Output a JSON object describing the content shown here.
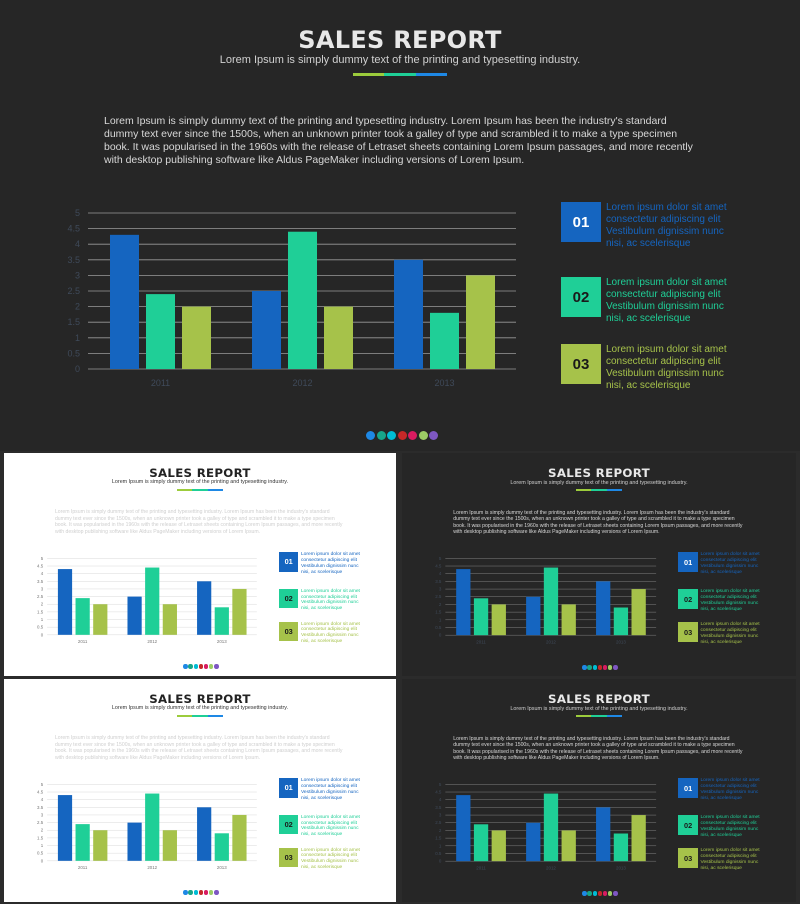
{
  "slides": [
    {
      "theme": "dark",
      "title": "SALES REPORT",
      "subtitle": "Lorem Ipsum is simply dummy text of the printing and typesetting industry.",
      "body": "Lorem Ipsum is simply dummy text of the printing and typesetting industry. Lorem Ipsum has been the industry's standard dummy text ever since the 1500s, when an unknown printer took a galley of type and scrambled it to make a type specimen book. It was popularised in the 1960s with the release of Letraset sheets containing Lorem Ipsum passages, and more recently with desktop publishing software like Aldus PageMaker including versions of Lorem Ipsum.",
      "legend": [
        {
          "num": "01",
          "text": "Lorem ipsum dolor sit amet consectetur adipiscing elit Vestibulum dignissim nunc nisi, ac scelerisque"
        },
        {
          "num": "02",
          "text": "Lorem ipsum dolor sit amet consectetur adipiscing elit Vestibulum dignissim nunc nisi, ac scelerisque"
        },
        {
          "num": "03",
          "text": "Lorem ipsum dolor sit amet consectetur adipiscing elit Vestibulum dignissim nunc nisi, ac scelerisque"
        }
      ]
    },
    {
      "theme": "light",
      "title": "SALES REPORT",
      "subtitle": "Lorem Ipsum is simply dummy text of the printing and typesetting industry.",
      "body": "Lorem Ipsum is simply dummy text of the printing and typesetting industry. Lorem Ipsum has been the industry's standard dummy text ever since the 1500s, when an unknown printer took a galley of type and scrambled it to make a type specimen book. It was popularised in the 1960s with the release of Letraset sheets containing Lorem Ipsum passages, and more recently with desktop publishing software like Aldus PageMaker including versions of Lorem Ipsum.",
      "legend": [
        {
          "num": "01",
          "text": "Lorem ipsum dolor sit amet consectetur adipiscing elit Vestibulum dignissim nunc nisi, ac scelerisque"
        },
        {
          "num": "02",
          "text": "Lorem ipsum dolor sit amet consectetur adipiscing elit Vestibulum dignissim nunc nisi, ac scelerisque"
        },
        {
          "num": "03",
          "text": "Lorem ipsum dolor sit amet consectetur adipiscing elit Vestibulum dignissim nunc nisi, ac scelerisque"
        }
      ]
    },
    {
      "theme": "dark",
      "title": "SALES REPORT",
      "subtitle": "Lorem Ipsum is simply dummy text of the printing and typesetting industry.",
      "body": "Lorem Ipsum is simply dummy text of the printing and typesetting industry. Lorem Ipsum has been the industry's standard dummy text ever since the 1500s, when an unknown printer took a galley of type and scrambled it to make a type specimen book. It was popularised in the 1960s with the release of Letraset sheets containing Lorem Ipsum passages, and more recently with desktop publishing software like Aldus PageMaker including versions of Lorem Ipsum.",
      "legend": [
        {
          "num": "01",
          "text": "Lorem ipsum dolor sit amet consectetur adipiscing elit Vestibulum dignissim nunc nisi, ac scelerisque"
        },
        {
          "num": "02",
          "text": "Lorem ipsum dolor sit amet consectetur adipiscing elit Vestibulum dignissim nunc nisi, ac scelerisque"
        },
        {
          "num": "03",
          "text": "Lorem ipsum dolor sit amet consectetur adipiscing elit Vestibulum dignissim nunc nisi, ac scelerisque"
        }
      ]
    },
    {
      "theme": "light",
      "title": "SALES REPORT",
      "subtitle": "Lorem Ipsum is simply dummy text of the printing and typesetting industry.",
      "body": "Lorem Ipsum is simply dummy text of the printing and typesetting industry. Lorem Ipsum has been the industry's standard dummy text ever since the 1500s, when an unknown printer took a galley of type and scrambled it to make a type specimen book. It was popularised in the 1960s with the release of Letraset sheets containing Lorem Ipsum passages, and more recently with desktop publishing software like Aldus PageMaker including versions of Lorem Ipsum.",
      "legend": [
        {
          "num": "01",
          "text": "Lorem ipsum dolor sit amet consectetur adipiscing elit Vestibulum dignissim nunc nisi, ac scelerisque"
        },
        {
          "num": "02",
          "text": "Lorem ipsum dolor sit amet consectetur adipiscing elit Vestibulum dignissim nunc nisi, ac scelerisque"
        },
        {
          "num": "03",
          "text": "Lorem ipsum dolor sit amet consectetur adipiscing elit Vestibulum dignissim nunc nisi, ac scelerisque"
        }
      ]
    },
    {
      "theme": "dark",
      "title": "SALES REPORT",
      "subtitle": "Lorem Ipsum is simply dummy text of the printing and typesetting industry.",
      "body": "Lorem Ipsum is simply dummy text of the printing and typesetting industry. Lorem Ipsum has been the industry's standard dummy text ever since the 1500s, when an unknown printer took a galley of type and scrambled it to make a type specimen book. It was popularised in the 1960s with the release of Letraset sheets containing Lorem Ipsum passages, and more recently with desktop publishing software like Aldus PageMaker including versions of Lorem Ipsum.",
      "legend": [
        {
          "num": "01",
          "text": "Lorem ipsum dolor sit amet consectetur adipiscing elit Vestibulum dignissim nunc nisi, ac scelerisque"
        },
        {
          "num": "02",
          "text": "Lorem ipsum dolor sit amet consectetur adipiscing elit Vestibulum dignissim nunc nisi, ac scelerisque"
        },
        {
          "num": "03",
          "text": "Lorem ipsum dolor sit amet consectetur adipiscing elit Vestibulum dignissim nunc nisi, ac scelerisque"
        }
      ]
    }
  ],
  "colors": {
    "series": [
      "#1565c0",
      "#1fcf97",
      "#a6c24a"
    ],
    "dots": [
      "#1e88e5",
      "#17a589",
      "#00bcd4",
      "#c62828",
      "#d81b60",
      "#9ccc65",
      "#7e57c2"
    ],
    "underline": [
      "#9ccc3c",
      "#1fcf97",
      "#1e88e5"
    ]
  },
  "chart_data": {
    "type": "bar",
    "categories": [
      "2011",
      "2012",
      "2013"
    ],
    "series": [
      {
        "values": [
          4.3,
          2.5,
          3.5
        ]
      },
      {
        "values": [
          2.4,
          4.4,
          1.8
        ]
      },
      {
        "values": [
          2.0,
          2.0,
          3.0
        ]
      }
    ],
    "yticks": [
      "0",
      "0.5",
      "1",
      "1.5",
      "2",
      "2.5",
      "3",
      "3.5",
      "4",
      "4.5",
      "5"
    ],
    "ylim": [
      0,
      5
    ]
  }
}
